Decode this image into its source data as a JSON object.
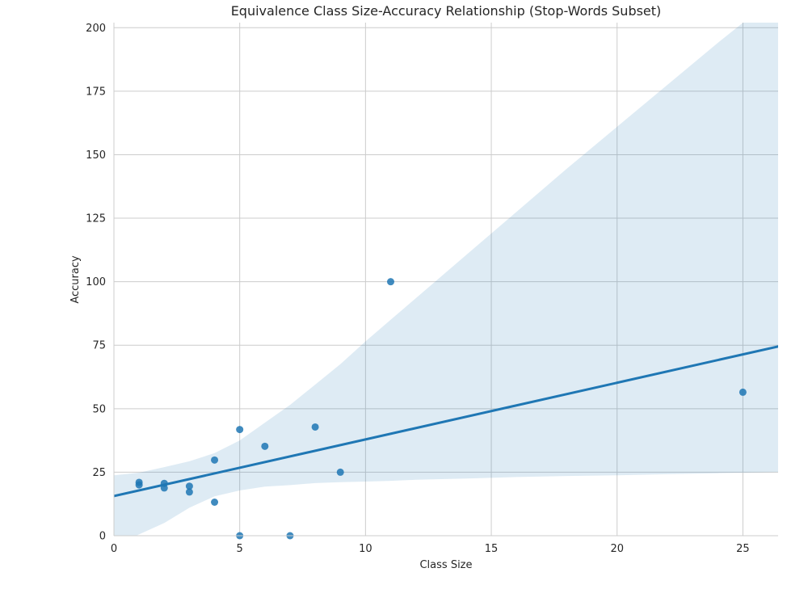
{
  "chart_data": {
    "type": "scatter",
    "title": "Equivalence Class Size-Accuracy Relationship (Stop-Words Subset)",
    "xlabel": "Class Size",
    "ylabel": "Accuracy",
    "xlim": [
      0,
      26.4
    ],
    "ylim": [
      0,
      202
    ],
    "x_ticks": [
      0,
      5,
      10,
      15,
      20,
      25
    ],
    "y_ticks": [
      0,
      25,
      50,
      75,
      100,
      125,
      150,
      175,
      200
    ],
    "grid": true,
    "colors": {
      "points": "#1f77b4",
      "regression_line": "#1f77b4",
      "confidence_band": "#1f77b4"
    },
    "points": [
      {
        "x": 1,
        "y": 21.0
      },
      {
        "x": 1,
        "y": 20.0
      },
      {
        "x": 2,
        "y": 20.6
      },
      {
        "x": 2,
        "y": 18.8
      },
      {
        "x": 3,
        "y": 19.5
      },
      {
        "x": 3,
        "y": 17.2
      },
      {
        "x": 4,
        "y": 29.8
      },
      {
        "x": 4,
        "y": 13.2
      },
      {
        "x": 5,
        "y": 41.8
      },
      {
        "x": 5,
        "y": 0.0
      },
      {
        "x": 6,
        "y": 35.2
      },
      {
        "x": 7,
        "y": 0.0
      },
      {
        "x": 8,
        "y": 42.8
      },
      {
        "x": 9,
        "y": 25.0
      },
      {
        "x": 11,
        "y": 100.0
      },
      {
        "x": 25,
        "y": 56.5
      }
    ],
    "regression_line": {
      "x": [
        0,
        26.4
      ],
      "y": [
        15.6,
        74.5
      ]
    },
    "confidence_band": {
      "x": [
        0,
        1,
        2,
        3,
        4,
        5,
        6,
        7,
        8,
        9,
        10,
        11,
        12,
        14,
        16,
        18,
        20,
        22,
        24,
        26.4
      ],
      "upper": [
        23.8,
        24.8,
        27.0,
        29.3,
        32.5,
        37.5,
        44.5,
        51.5,
        59.5,
        67.5,
        76.5,
        85.0,
        93.5,
        110.5,
        127.5,
        144.5,
        161.0,
        177.5,
        194.0,
        213.0
      ],
      "lower": [
        -4.0,
        0.5,
        5.0,
        11.0,
        15.5,
        17.8,
        19.3,
        19.9,
        20.7,
        21.1,
        21.3,
        21.6,
        22.0,
        22.5,
        23.1,
        23.5,
        23.8,
        24.2,
        24.6,
        25.1
      ]
    }
  }
}
